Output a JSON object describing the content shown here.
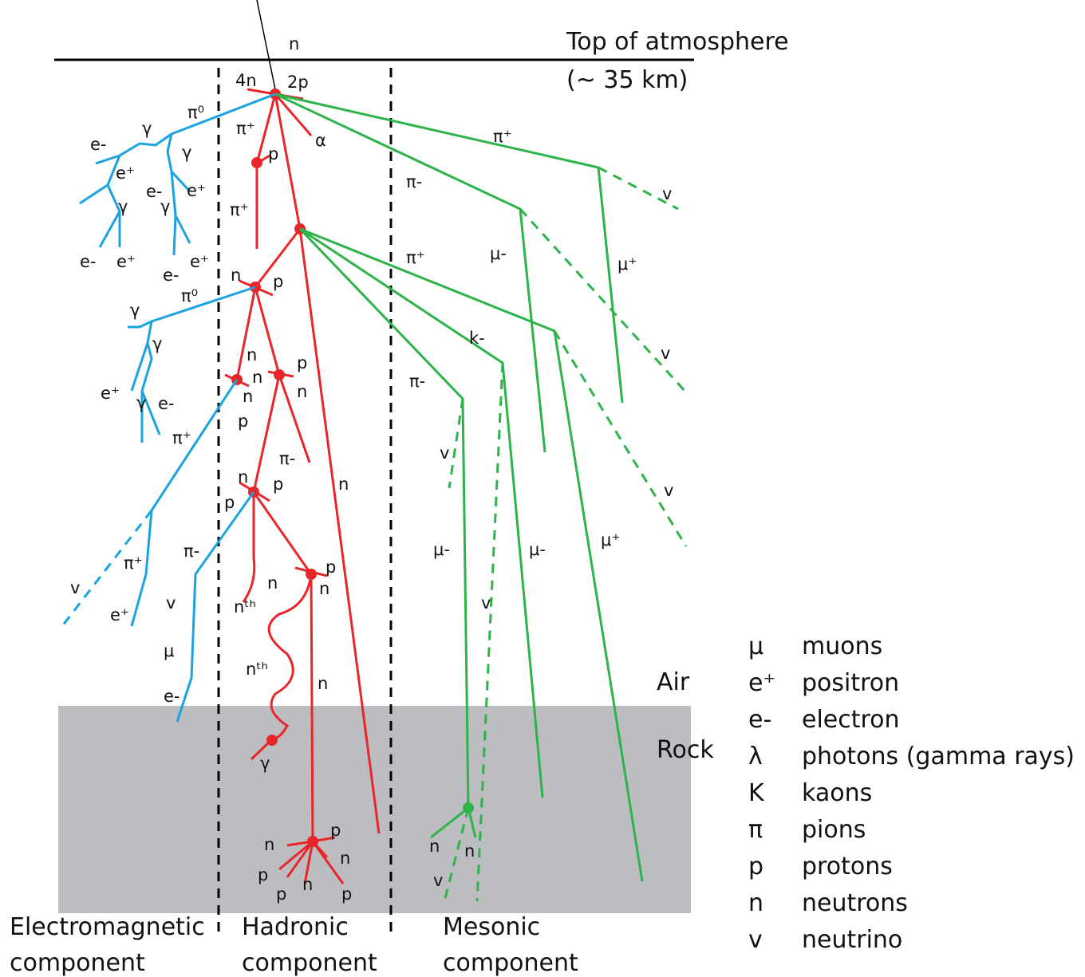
{
  "header": {
    "title": "Top of atmosphere",
    "subtitle": "(~ 35 km)"
  },
  "layers": {
    "air": "Air",
    "rock": "Rock"
  },
  "components": [
    {
      "line1": "Electromagnetic",
      "line2": "component"
    },
    {
      "line1": "Hadronic",
      "line2": "component"
    },
    {
      "line1": "Mesonic",
      "line2": "component"
    }
  ],
  "legend": [
    {
      "symbol": "μ",
      "name": "muons"
    },
    {
      "symbol": "e⁺",
      "name": "positron"
    },
    {
      "symbol": "e-",
      "name": "electron"
    },
    {
      "symbol": "λ",
      "name": "photons (gamma rays)"
    },
    {
      "symbol": "K",
      "name": "kaons"
    },
    {
      "symbol": "π",
      "name": "pions"
    },
    {
      "symbol": "p",
      "name": "protons"
    },
    {
      "symbol": "n",
      "name": "neutrons"
    },
    {
      "symbol": "v",
      "name": "neutrino"
    }
  ],
  "labels": [
    "n",
    "4n",
    "2p",
    "π⁰",
    "π⁺",
    "α",
    "p",
    "π⁺",
    "γ",
    "e-",
    "γ",
    "e⁺",
    "e-",
    "γ",
    "γ",
    "e⁺",
    "e-",
    "e⁺",
    "e⁺",
    "e-",
    "π⁺",
    "π-",
    "v",
    "π⁺",
    "μ-",
    "μ⁺",
    "n",
    "p",
    "π⁰",
    "γ",
    "γ",
    "k-",
    "v",
    "n",
    "n",
    "p",
    "n",
    "n",
    "p",
    "e⁺",
    "γ",
    "e-",
    "π-",
    "v",
    "π⁺",
    "π-",
    "n",
    "v",
    "n",
    "p",
    "p",
    "π⁺",
    "π-",
    "μ-",
    "μ-",
    "μ⁺",
    "v",
    "v",
    "e⁺",
    "n",
    "nᵗʰ",
    "p",
    "n",
    "v",
    "μ",
    "nᵗʰ",
    "n",
    "e-",
    "γ",
    "n",
    "p",
    "n",
    "p",
    "p",
    "n",
    "p",
    "n",
    "n",
    "v"
  ]
}
